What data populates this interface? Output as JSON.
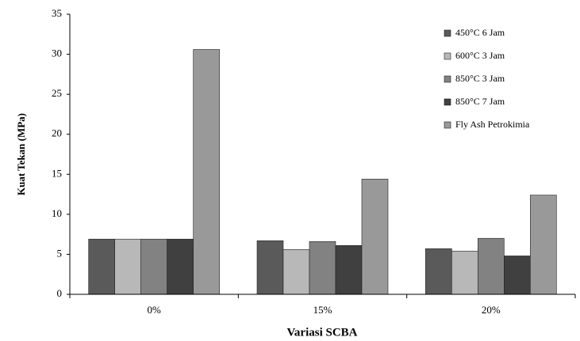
{
  "chart_data": {
    "type": "bar",
    "y_label": "Kuat Tekan (MPa)",
    "x_label": "Variasi SCBA",
    "categories": [
      "0%",
      "15%",
      "20%"
    ],
    "series": [
      {
        "name": "450°C  6 Jam",
        "color": "#5a5a5a",
        "values": [
          6.9,
          6.7,
          5.7
        ]
      },
      {
        "name": "600°C  3 Jam",
        "color": "#b8b8b8",
        "values": [
          6.9,
          5.6,
          5.4
        ]
      },
      {
        "name": "850°C  3 Jam",
        "color": "#828282",
        "values": [
          6.9,
          6.6,
          7.0
        ]
      },
      {
        "name": "850°C  7 Jam",
        "color": "#404040",
        "values": [
          6.9,
          6.1,
          4.8
        ]
      },
      {
        "name": "Fly Ash Petrokimia",
        "color": "#999999",
        "values": [
          30.6,
          14.4,
          12.4
        ]
      }
    ],
    "ylim": [
      0,
      35
    ],
    "yticks": [
      0,
      5,
      10,
      15,
      20,
      25,
      30,
      35
    ],
    "grid": false,
    "legend": "top-right"
  }
}
